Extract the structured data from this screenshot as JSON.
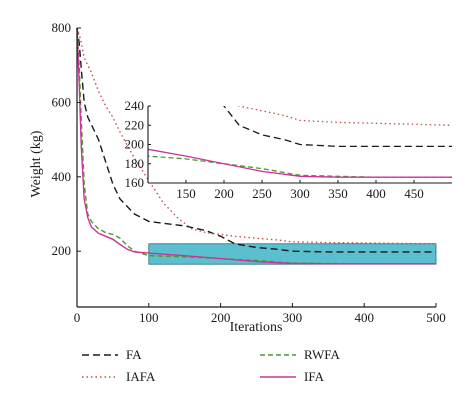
{
  "chart_data": {
    "type": "line",
    "xlabel": "Iterations",
    "ylabel": "Weight (kg)",
    "xlim": [
      0,
      500
    ],
    "ylim": [
      50,
      800
    ],
    "xticks": [
      0,
      100,
      200,
      300,
      400,
      500
    ],
    "yticks": [
      200,
      400,
      600,
      800
    ],
    "grid": false,
    "legend": {
      "placement": "bottom",
      "entries": [
        "FA",
        "IAFA",
        "RWFA",
        "IFA"
      ]
    },
    "highlight_region": {
      "x": [
        100,
        500
      ],
      "y": [
        165,
        220
      ],
      "color": "#5bbfcf"
    },
    "series": [
      {
        "name": "FA",
        "color": "#1a1a1a",
        "dash": "long-dash",
        "x": [
          0,
          3,
          6,
          10,
          15,
          20,
          30,
          40,
          50,
          60,
          80,
          100,
          120,
          150,
          180,
          200,
          220,
          250,
          280,
          300,
          350,
          400,
          500
        ],
        "y": [
          800,
          760,
          690,
          600,
          560,
          540,
          500,
          440,
          380,
          340,
          300,
          280,
          275,
          268,
          255,
          240,
          220,
          210,
          205,
          200,
          198,
          198,
          198
        ]
      },
      {
        "name": "IAFA",
        "color": "#c0504d",
        "dash": "dotted",
        "x": [
          0,
          5,
          10,
          20,
          30,
          40,
          50,
          60,
          80,
          100,
          120,
          140,
          160,
          180,
          200,
          220,
          250,
          280,
          300,
          350,
          400,
          450,
          500
        ],
        "y": [
          800,
          770,
          720,
          680,
          630,
          590,
          560,
          520,
          450,
          390,
          330,
          290,
          260,
          250,
          245,
          240,
          235,
          230,
          225,
          223,
          222,
          221,
          220
        ]
      },
      {
        "name": "RWFA",
        "color": "#4a9a2e",
        "dash": "dashed",
        "x": [
          0,
          3,
          6,
          10,
          15,
          20,
          30,
          40,
          50,
          60,
          70,
          80,
          100,
          150,
          200,
          250,
          300,
          350,
          400,
          450,
          500
        ],
        "y": [
          800,
          700,
          550,
          380,
          300,
          280,
          260,
          250,
          245,
          235,
          215,
          200,
          188,
          185,
          180,
          175,
          168,
          167,
          166,
          166,
          166
        ]
      },
      {
        "name": "IFA",
        "color": "#cc3399",
        "dash": "solid",
        "x": [
          0,
          3,
          6,
          10,
          15,
          20,
          30,
          40,
          50,
          60,
          70,
          80,
          100,
          150,
          200,
          250,
          300,
          350,
          400,
          450,
          500
        ],
        "y": [
          800,
          650,
          480,
          340,
          290,
          265,
          248,
          240,
          232,
          218,
          205,
          198,
          195,
          188,
          180,
          172,
          167,
          166,
          166,
          166,
          166
        ]
      }
    ],
    "inset": {
      "xlim": [
        100,
        500
      ],
      "ylim": [
        160,
        240
      ],
      "xticks": [
        150,
        200,
        250,
        300,
        350,
        400,
        450
      ],
      "yticks": [
        160,
        180,
        200,
        220,
        240
      ]
    }
  }
}
